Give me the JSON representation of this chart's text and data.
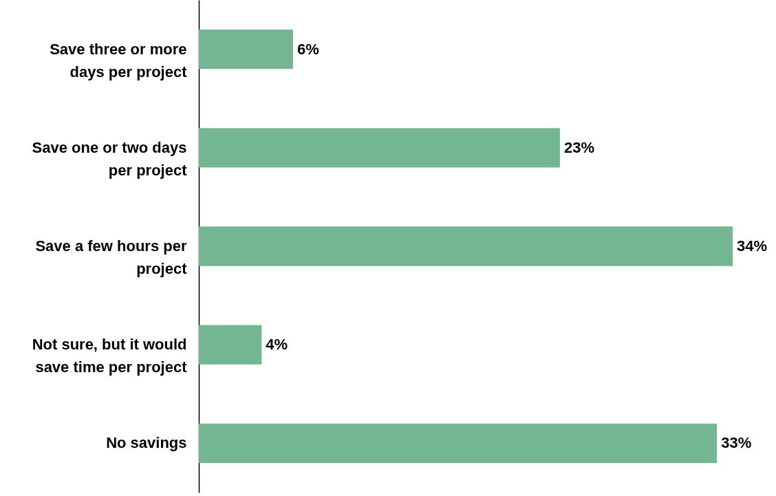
{
  "chart_data": {
    "type": "bar",
    "orientation": "horizontal",
    "data_labels": true,
    "categories": [
      "Save three or more days per project",
      "Save one or two days per project",
      "Save a few hours per project",
      "Not sure, but it would save time per project",
      "No savings"
    ],
    "values": [
      6,
      23,
      34,
      4,
      33
    ],
    "value_labels": [
      "6%",
      "23%",
      "34%",
      "4%",
      "33%"
    ],
    "color": "#72b792"
  }
}
